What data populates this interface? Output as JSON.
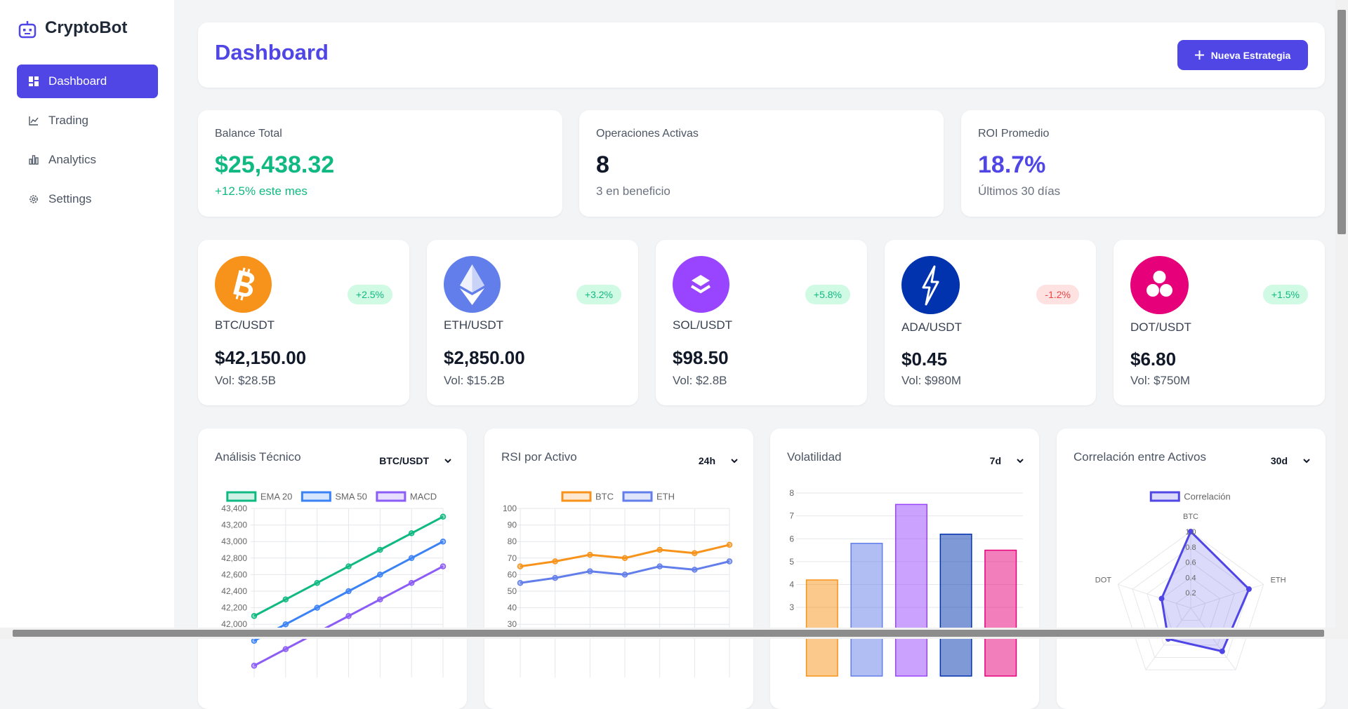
{
  "sidebar": {
    "brand": "CryptoBot",
    "nav": [
      "Dashboard",
      "Trading",
      "Analytics",
      "Settings"
    ]
  },
  "header": {
    "title": "Dashboard",
    "button": "Nueva Estrategia"
  },
  "stats": [
    {
      "label": "Balance Total",
      "value": "$25,438.32",
      "note": "+12.5% este mes"
    },
    {
      "label": "Operaciones Activas",
      "value": "8",
      "note": "3 en beneficio"
    },
    {
      "label": "ROI Promedio",
      "value": "18.7%",
      "note": "Últimos 30 días"
    }
  ],
  "assets": [
    {
      "pair": "BTC/USDT",
      "change": "+2.5%",
      "price": "$42,150.00",
      "volume": "Vol: $28.5B"
    },
    {
      "pair": "ETH/USDT",
      "change": "+3.2%",
      "price": "$2,850.00",
      "volume": "Vol: $15.2B"
    },
    {
      "pair": "SOL/USDT",
      "change": "+5.8%",
      "price": "$98.50",
      "volume": "Vol: $2.8B"
    },
    {
      "pair": "ADA/USDT",
      "change": "-1.2%",
      "price": "$0.45",
      "volume": "Vol: $980M"
    },
    {
      "pair": "DOT/USDT",
      "change": "+1.5%",
      "price": "$6.80",
      "volume": "Vol: $750M"
    }
  ],
  "chart_data": [
    {
      "type": "line",
      "title": "Análisis Técnico",
      "selector": "BTC/USDT",
      "categories": [
        null,
        null,
        null,
        null,
        null,
        null,
        null
      ],
      "series": [
        {
          "name": "EMA 20",
          "color": "#10b981",
          "values": [
            42100,
            42300,
            42500,
            42700,
            42900,
            43100,
            43300
          ]
        },
        {
          "name": "SMA 50",
          "color": "#3b82f6",
          "values": [
            41800,
            42000,
            42200,
            42400,
            42600,
            42800,
            43000
          ]
        },
        {
          "name": "MACD",
          "color": "#8b5cf6",
          "values": [
            41500,
            41700,
            41900,
            42100,
            42300,
            42500,
            42700
          ]
        }
      ],
      "ylim": [
        41400,
        43400
      ],
      "yticks": [
        {
          "value": 42000,
          "label": "42,000"
        },
        {
          "value": 42200,
          "label": "42,200"
        },
        {
          "value": 42400,
          "label": "42,400"
        },
        {
          "value": 42600,
          "label": "42,600"
        },
        {
          "value": 42800,
          "label": "42,800"
        },
        {
          "value": 43000,
          "label": "43,000"
        },
        {
          "value": 43200,
          "label": "43,200"
        },
        {
          "value": 43400,
          "label": "43,400"
        }
      ],
      "grid": true
    },
    {
      "type": "line",
      "title": "RSI por Activo",
      "selector": "24h",
      "categories": [
        null,
        null,
        null,
        null,
        null,
        null,
        null
      ],
      "series": [
        {
          "name": "BTC",
          "color": "#f7931a",
          "values": [
            65,
            68,
            72,
            70,
            75,
            73,
            78
          ]
        },
        {
          "name": "ETH",
          "color": "#627eea",
          "values": [
            55,
            58,
            62,
            60,
            65,
            63,
            68
          ]
        }
      ],
      "ylim": [
        0,
        100
      ],
      "yticks": [
        30,
        40,
        50,
        60,
        70,
        80,
        90,
        100
      ],
      "grid": true
    },
    {
      "type": "bar",
      "title": "Volatilidad",
      "selector": "7d",
      "categories": [
        null,
        null,
        null,
        null,
        null
      ],
      "values": [
        4.2,
        5.8,
        7.5,
        6.2,
        5.5
      ],
      "colors": [
        "#f7931a",
        "#627eea",
        "#9945ff",
        "#0033ad",
        "#e6007a"
      ],
      "ylim": [
        0,
        8
      ],
      "yticks": [
        3,
        4,
        5,
        6,
        7,
        8
      ],
      "grid": true
    },
    {
      "type": "radar",
      "title": "Correlación entre Activos",
      "selector": "30d",
      "categories": [
        "BTC",
        "ETH",
        null,
        null,
        "DOT"
      ],
      "series": [
        {
          "name": "Correlación",
          "color": "#4f46e5",
          "values": [
            1,
            0.8,
            0.7,
            0.5,
            0.4
          ]
        }
      ],
      "rlim": [
        0,
        1
      ],
      "rticks": [
        0.2,
        0.4,
        0.6,
        0.8,
        {
          "value": 1,
          "label": "1.0"
        }
      ],
      "grid": true
    }
  ]
}
